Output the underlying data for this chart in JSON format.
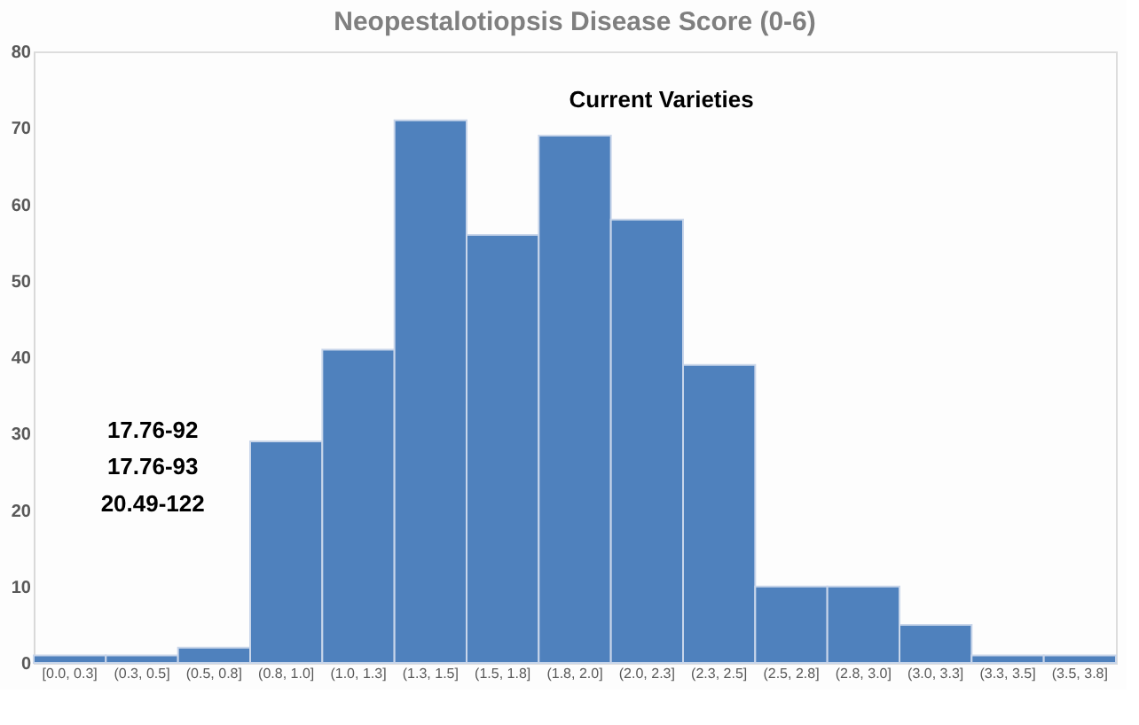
{
  "chart_data": {
    "type": "bar",
    "title": "Neopestalotiopsis Disease Score (0-6)",
    "categories": [
      "[0.0, 0.3]",
      "(0.3, 0.5]",
      "(0.5, 0.8]",
      "(0.8, 1.0]",
      "(1.0, 1.3]",
      "(1.3, 1.5]",
      "(1.5, 1.8]",
      "(1.8, 2.0]",
      "(2.0, 2.3]",
      "(2.3, 2.5]",
      "(2.5, 2.8]",
      "(2.8, 3.0]",
      "(3.0, 3.3]",
      "(3.3, 3.5]",
      "(3.5, 3.8]"
    ],
    "values": [
      1,
      1,
      2,
      29,
      41,
      71,
      56,
      69,
      58,
      39,
      10,
      10,
      5,
      1,
      1
    ],
    "color": "#4f81bd",
    "ylim": [
      0,
      80
    ],
    "yticks": [
      0,
      10,
      20,
      30,
      40,
      50,
      60,
      70,
      80
    ],
    "grid": false,
    "annotations": [
      "Current Varieties",
      "17.76-92",
      "17.76-93",
      "20.49-122"
    ]
  }
}
